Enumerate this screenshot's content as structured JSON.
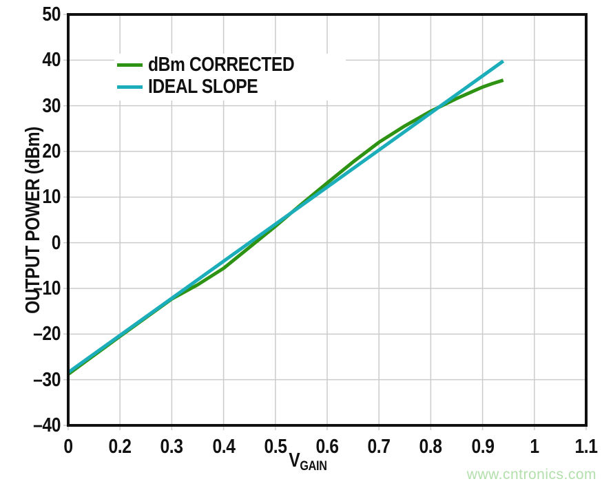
{
  "watermark": {
    "text": "www.cntronics.com",
    "color": "#b2dfab"
  },
  "style": {
    "grid_color": "#cbcbcb",
    "frame_color": "#111111",
    "background": "#ffffff",
    "tick_stub_len": 7
  },
  "chart_data": {
    "type": "line",
    "title": "",
    "xlabel": "VGAIN",
    "xlabel_main": "V",
    "xlabel_sub": "GAIN",
    "ylabel": "OUTPUT POWER (dBm)",
    "ylim": [
      -40,
      50
    ],
    "grid": true,
    "legend_position": "top-left-inside",
    "x_ticks": [
      {
        "label": "0",
        "u": 0
      },
      {
        "label": "0.2",
        "u": 1
      },
      {
        "label": "0.3",
        "u": 2
      },
      {
        "label": "0.4",
        "u": 3
      },
      {
        "label": "0.5",
        "u": 4
      },
      {
        "label": "0.6",
        "u": 5
      },
      {
        "label": "0.7",
        "u": 6
      },
      {
        "label": "0.8",
        "u": 7
      },
      {
        "label": "0.9",
        "u": 8
      },
      {
        "label": "1",
        "u": 9
      },
      {
        "label": "1.1",
        "u": 10
      }
    ],
    "y_ticks": [
      {
        "label": "50",
        "value": 50
      },
      {
        "label": "40",
        "value": 40
      },
      {
        "label": "30",
        "value": 30
      },
      {
        "label": "20",
        "value": 20
      },
      {
        "label": "10",
        "value": 10
      },
      {
        "label": "0",
        "value": 0
      },
      {
        "label": "–10",
        "value": -10
      },
      {
        "label": "–20",
        "value": -20
      },
      {
        "label": "–30",
        "value": -30
      },
      {
        "label": "–40",
        "value": -40
      }
    ],
    "series": [
      {
        "name": "dBm CORRECTED",
        "color": "#2e9313",
        "points": [
          [
            0,
            -28.8
          ],
          [
            0.2,
            -20.5
          ],
          [
            0.3,
            -12.3
          ],
          [
            0.35,
            -9.2
          ],
          [
            0.4,
            -5.6
          ],
          [
            0.45,
            -1.0
          ],
          [
            0.5,
            3.6
          ],
          [
            0.55,
            8.4
          ],
          [
            0.6,
            13.1
          ],
          [
            0.65,
            17.7
          ],
          [
            0.7,
            22.0
          ],
          [
            0.75,
            25.6
          ],
          [
            0.8,
            28.8
          ],
          [
            0.85,
            31.6
          ],
          [
            0.9,
            34.1
          ],
          [
            0.92,
            34.9
          ],
          [
            0.94,
            35.6
          ]
        ]
      },
      {
        "name": "IDEAL SLOPE",
        "color": "#1badb9",
        "points": [
          [
            0,
            -28.4
          ],
          [
            0.94,
            39.8
          ]
        ]
      }
    ]
  }
}
